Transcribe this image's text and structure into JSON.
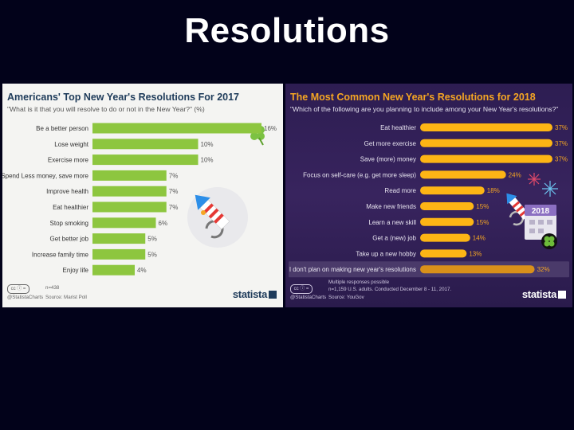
{
  "slide": {
    "title": "Resolutions"
  },
  "chart_data": [
    {
      "type": "bar",
      "orientation": "horizontal",
      "title": "Americans' Top New Year's Resolutions For 2017",
      "subtitle": "\"What is it that you will resolve to do or not in the New Year?\" (%)",
      "categories": [
        "Be a better person",
        "Lose weight",
        "Exercise more",
        "Spend Less money, save more",
        "Improve health",
        "Eat healthier",
        "Stop smoking",
        "Get better job",
        "Increase family time",
        "Enjoy life"
      ],
      "values": [
        16,
        10,
        10,
        7,
        7,
        7,
        6,
        5,
        5,
        4
      ],
      "value_labels": [
        "16%",
        "10%",
        "10%",
        "7%",
        "7%",
        "7%",
        "6%",
        "5%",
        "5%",
        "4%"
      ],
      "xlim": [
        0,
        16
      ],
      "grid": false,
      "bar_color": "#8dc63f",
      "footer": {
        "handle": "@StatistaCharts",
        "note1": "n=438",
        "note2": "Source: Marist Poll"
      },
      "brand": "statista",
      "icons": [
        "clover-icon",
        "firework-rocket-icon"
      ]
    },
    {
      "type": "bar",
      "orientation": "horizontal",
      "title": "The Most Common New Year's Resolutions for 2018",
      "subtitle": "\"Which of the following are you planning to include among your New Year's resolutions?\"",
      "categories": [
        "Eat healthier",
        "Get more exercise",
        "Save (more) money",
        "Focus on self-care (e.g. get more sleep)",
        "Read more",
        "Make new friends",
        "Learn a new skill",
        "Get a (new) job",
        "Take up a new hobby",
        "I don't plan on making new year's resolutions"
      ],
      "values": [
        37,
        37,
        37,
        24,
        18,
        15,
        15,
        14,
        13,
        32
      ],
      "value_labels": [
        "37%",
        "37%",
        "37%",
        "24%",
        "18%",
        "15%",
        "15%",
        "14%",
        "13%",
        "32%"
      ],
      "xlim": [
        0,
        37
      ],
      "grid": false,
      "bar_color": "#fdb515",
      "footer": {
        "handle": "@StatistaCharts",
        "note1": "Multiple responses possible",
        "note2": "n=1,159 U.S. adults. Conducted December 8 - 11, 2017.",
        "note3": "Source: YouGov"
      },
      "brand": "statista",
      "icons": [
        "fireworks-icon",
        "firework-rocket-icon",
        "calendar-2018-icon",
        "clover-icon"
      ],
      "calendar_label": "2018"
    }
  ]
}
